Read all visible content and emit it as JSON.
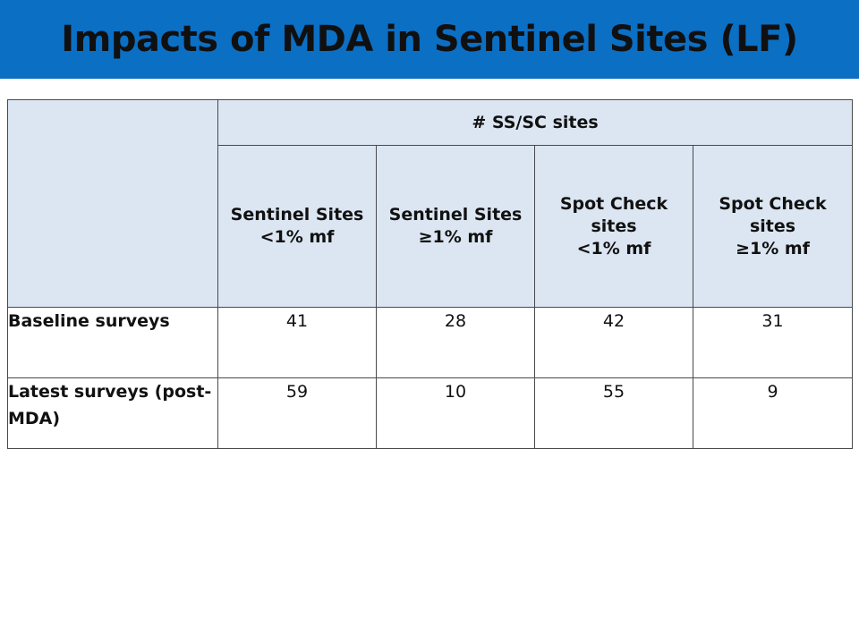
{
  "slide": {
    "title": "Impacts of MDA in Sentinel Sites (LF)"
  },
  "table": {
    "group_header": "# SS/SC sites",
    "columns": [
      {
        "lines": [
          "Sentinel Sites",
          "<1% mf"
        ]
      },
      {
        "lines": [
          "Sentinel Sites",
          "≥1% mf"
        ]
      },
      {
        "lines": [
          "Spot Check",
          "sites",
          "<1% mf"
        ]
      },
      {
        "lines": [
          "Spot Check",
          "sites",
          "≥1% mf"
        ]
      }
    ],
    "rows": [
      {
        "label": "Baseline surveys",
        "values": [
          "41",
          "28",
          "42",
          "31"
        ]
      },
      {
        "label": "Latest surveys (post-MDA)",
        "values": [
          "59",
          "10",
          "55",
          "9"
        ]
      }
    ]
  },
  "colors": {
    "title_bar": "#0b6fc4",
    "header_fill": "#dce6f2"
  }
}
